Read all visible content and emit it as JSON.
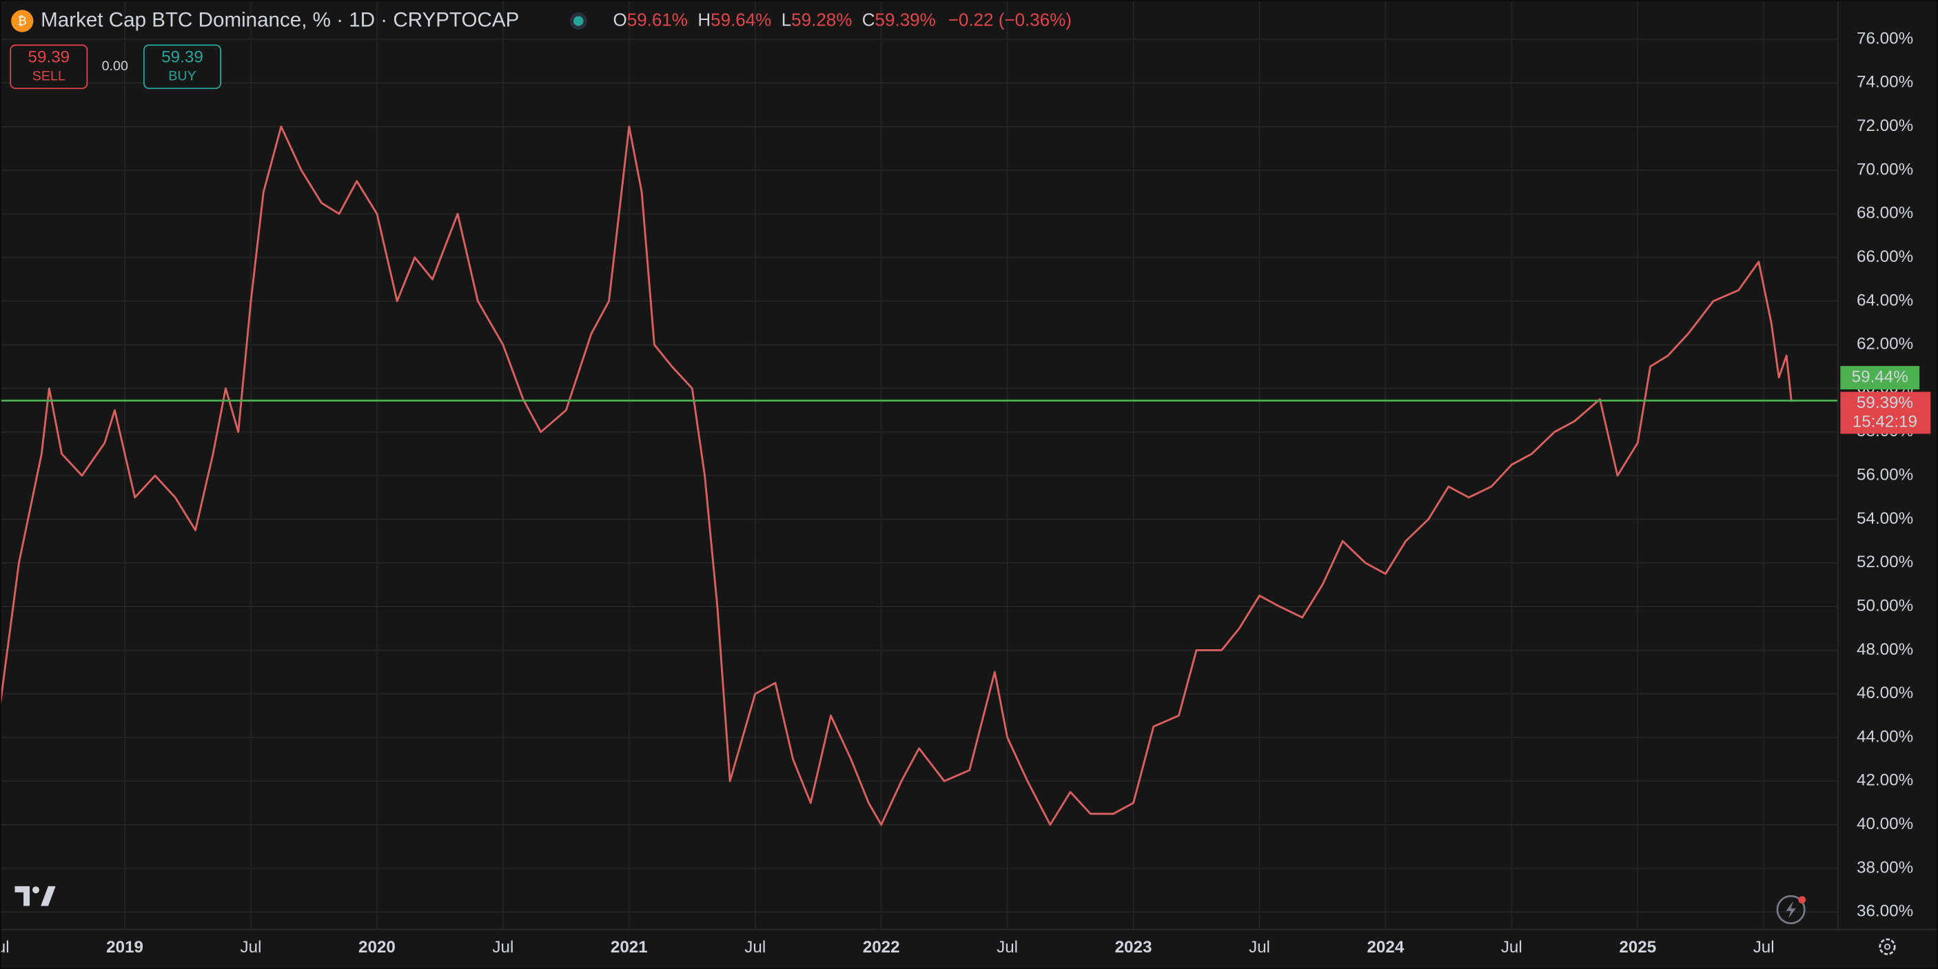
{
  "header": {
    "title": "Market Cap BTC Dominance, % · 1D · CRYPTOCAP",
    "ohlc": [
      {
        "label": "O",
        "value": "59.61%"
      },
      {
        "label": "H",
        "value": "59.64%"
      },
      {
        "label": "L",
        "value": "59.28%"
      },
      {
        "label": "C",
        "value": "59.39%"
      }
    ],
    "change": "−0.22 (−0.36%)"
  },
  "trade": {
    "sell": {
      "price": "59.39",
      "label": "SELL"
    },
    "spread": "0.00",
    "buy": {
      "price": "59.39",
      "label": "BUY"
    }
  },
  "chart_data": {
    "type": "line",
    "color": "#d9605e",
    "x": [
      2018.5,
      2018.58,
      2018.67,
      2018.7,
      2018.75,
      2018.83,
      2018.92,
      2018.96,
      2019.04,
      2019.12,
      2019.2,
      2019.28,
      2019.35,
      2019.4,
      2019.45,
      2019.5,
      2019.55,
      2019.62,
      2019.7,
      2019.78,
      2019.85,
      2019.92,
      2020.0,
      2020.08,
      2020.15,
      2020.22,
      2020.32,
      2020.4,
      2020.5,
      2020.58,
      2020.65,
      2020.75,
      2020.85,
      2020.92,
      2021.0,
      2021.05,
      2021.1,
      2021.17,
      2021.25,
      2021.3,
      2021.35,
      2021.4,
      2021.45,
      2021.5,
      2021.58,
      2021.65,
      2021.72,
      2021.8,
      2021.88,
      2021.95,
      2022.0,
      2022.08,
      2022.15,
      2022.25,
      2022.35,
      2022.45,
      2022.5,
      2022.58,
      2022.67,
      2022.75,
      2022.83,
      2022.92,
      2023.0,
      2023.08,
      2023.18,
      2023.25,
      2023.35,
      2023.42,
      2023.5,
      2023.58,
      2023.67,
      2023.75,
      2023.83,
      2023.92,
      2024.0,
      2024.08,
      2024.17,
      2024.25,
      2024.33,
      2024.42,
      2024.5,
      2024.58,
      2024.67,
      2024.75,
      2024.85,
      2024.92,
      2025.0,
      2025.05,
      2025.12,
      2025.2,
      2025.3,
      2025.4,
      2025.48,
      2025.53,
      2025.56,
      2025.59,
      2025.61
    ],
    "values": [
      45,
      52,
      57,
      60,
      57,
      56,
      57.5,
      59,
      55,
      56,
      55,
      53.5,
      57,
      60,
      58,
      64,
      69,
      72,
      70,
      68.5,
      68,
      69.5,
      68,
      64,
      66,
      65,
      68,
      64,
      62,
      59.5,
      58,
      59,
      62.5,
      64,
      72,
      69,
      62,
      61,
      60,
      56,
      50,
      42,
      44,
      46,
      46.5,
      43,
      41,
      45,
      43,
      41,
      40,
      42,
      43.5,
      42,
      42.5,
      47,
      44,
      42,
      40,
      41.5,
      40.5,
      40.5,
      41,
      44.5,
      45,
      48,
      48,
      49,
      50.5,
      50,
      49.5,
      51,
      53,
      52,
      51.5,
      53,
      54,
      55.5,
      55,
      55.5,
      56.5,
      57,
      58,
      58.5,
      59.5,
      56,
      57.5,
      61,
      61.5,
      62.5,
      64,
      64.5,
      65.8,
      63,
      60.5,
      61.5,
      59.39
    ],
    "xlim": [
      2018.505,
      2025.794
    ],
    "ylim": [
      35.2,
      77.8
    ],
    "xticks": [
      {
        "value": 2018.5,
        "label": "Jul"
      },
      {
        "value": 2019,
        "label": "2019"
      },
      {
        "value": 2019.5,
        "label": "Jul"
      },
      {
        "value": 2020,
        "label": "2020"
      },
      {
        "value": 2020.5,
        "label": "Jul"
      },
      {
        "value": 2021,
        "label": "2021"
      },
      {
        "value": 2021.5,
        "label": "Jul"
      },
      {
        "value": 2022,
        "label": "2022"
      },
      {
        "value": 2022.5,
        "label": "Jul"
      },
      {
        "value": 2023,
        "label": "2023"
      },
      {
        "value": 2023.5,
        "label": "Jul"
      },
      {
        "value": 2024,
        "label": "2024"
      },
      {
        "value": 2024.5,
        "label": "Jul"
      },
      {
        "value": 2025,
        "label": "2025"
      },
      {
        "value": 2025.5,
        "label": "Jul"
      }
    ],
    "yticks": [
      {
        "value": 36,
        "label": "36.00%"
      },
      {
        "value": 38,
        "label": "38.00%"
      },
      {
        "value": 40,
        "label": "40.00%"
      },
      {
        "value": 42,
        "label": "42.00%"
      },
      {
        "value": 44,
        "label": "44.00%"
      },
      {
        "value": 46,
        "label": "46.00%"
      },
      {
        "value": 48,
        "label": "48.00%"
      },
      {
        "value": 50,
        "label": "50.00%"
      },
      {
        "value": 52,
        "label": "52.00%"
      },
      {
        "value": 54,
        "label": "54.00%"
      },
      {
        "value": 56,
        "label": "56.00%"
      },
      {
        "value": 58,
        "label": "58.00%"
      },
      {
        "value": 60,
        "label": "60.00%"
      },
      {
        "value": 62,
        "label": "62.00%"
      },
      {
        "value": 64,
        "label": "64.00%"
      },
      {
        "value": 66,
        "label": "66.00%"
      },
      {
        "value": 68,
        "label": "68.00%"
      },
      {
        "value": 70,
        "label": "70.00%"
      },
      {
        "value": 72,
        "label": "72.00%"
      },
      {
        "value": 74,
        "label": "74.00%"
      },
      {
        "value": 76,
        "label": "76.00%"
      }
    ],
    "grid": true,
    "bid_line": {
      "value": 59.44,
      "label": "59.44%",
      "color": "#4caf50"
    },
    "last_price": {
      "value": 59.39,
      "label": "59.39%",
      "countdown": "15:42:19",
      "color": "#e0454a"
    }
  }
}
